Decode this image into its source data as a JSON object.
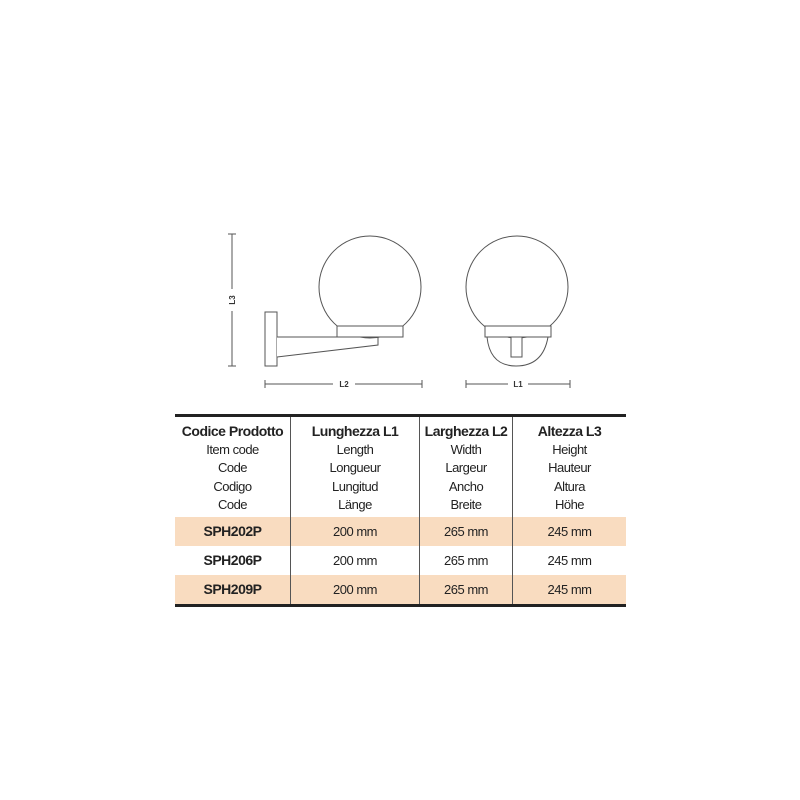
{
  "drawing": {
    "labels": {
      "height": "L3",
      "width": "L2",
      "length": "L1"
    }
  },
  "table": {
    "headers": [
      {
        "title": "Codice Prodotto",
        "translations": [
          "Item code",
          "Code",
          "Codigo",
          "Code"
        ]
      },
      {
        "title": "Lunghezza L1",
        "translations": [
          "Length",
          "Longueur",
          "Lungitud",
          "Länge"
        ]
      },
      {
        "title": "Larghezza L2",
        "translations": [
          "Width",
          "Largeur",
          "Ancho",
          "Breite"
        ]
      },
      {
        "title": "Altezza L3",
        "translations": [
          "Height",
          "Hauteur",
          "Altura",
          "Höhe"
        ]
      }
    ],
    "rows": [
      {
        "code": "SPH202P",
        "length": "200 mm",
        "width": "265 mm",
        "height": "245 mm",
        "highlighted": true
      },
      {
        "code": "SPH206P",
        "length": "200 mm",
        "width": "265 mm",
        "height": "245 mm",
        "highlighted": false
      },
      {
        "code": "SPH209P",
        "length": "200 mm",
        "width": "265 mm",
        "height": "245 mm",
        "highlighted": true
      }
    ],
    "highlight_color": "#f9dcc0"
  }
}
